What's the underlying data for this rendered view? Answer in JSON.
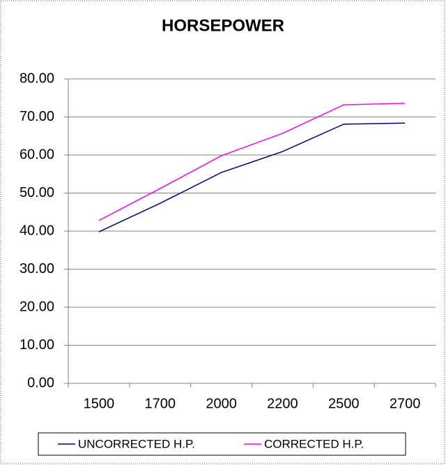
{
  "chart_data": {
    "type": "line",
    "title": "HORSEPOWER",
    "categories": [
      "1500",
      "1700",
      "2000",
      "2200",
      "2500",
      "2700"
    ],
    "series": [
      {
        "name": "UNCORRECTED H.P.",
        "color": "#000080",
        "values": [
          39.8,
          47.3,
          55.4,
          60.9,
          68.1,
          68.4
        ]
      },
      {
        "name": "CORRECTED H.P.",
        "color": "#ff00ff",
        "values": [
          42.8,
          51.2,
          59.8,
          65.7,
          73.2,
          73.6
        ]
      }
    ],
    "ylim": [
      0,
      80
    ],
    "yticks": [
      {
        "value": 0,
        "label": "0.00"
      },
      {
        "value": 10,
        "label": "10.00"
      },
      {
        "value": 20,
        "label": "20.00"
      },
      {
        "value": 30,
        "label": "30.00"
      },
      {
        "value": 40,
        "label": "40.00"
      },
      {
        "value": 50,
        "label": "50.00"
      },
      {
        "value": 60,
        "label": "60.00"
      },
      {
        "value": 70,
        "label": "70.00"
      },
      {
        "value": 80,
        "label": "80.00"
      }
    ],
    "grid": true,
    "legend": "bottom"
  }
}
